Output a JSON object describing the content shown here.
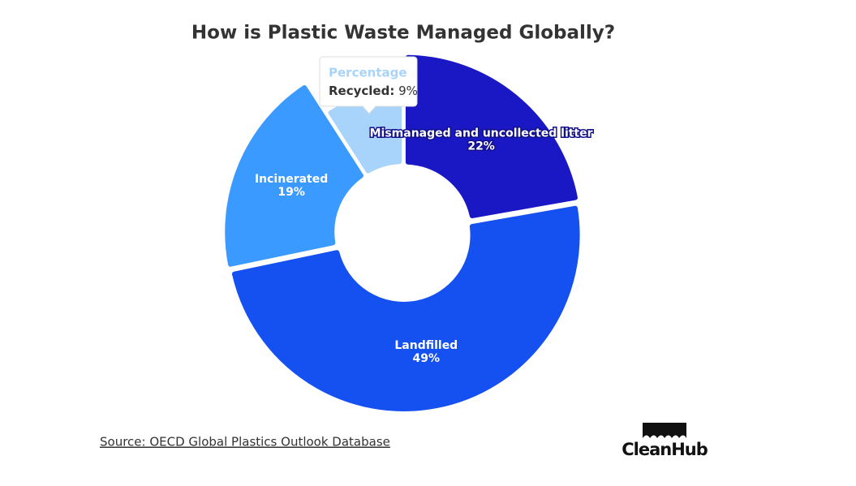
{
  "chart_data": {
    "type": "donut",
    "title": "How is Plastic Waste Managed Globally?",
    "categories": [
      "Mismanaged and uncollected litter",
      "Landfilled",
      "Incinerated",
      "Recycled"
    ],
    "values": [
      22,
      49,
      19,
      9
    ],
    "value_labels": [
      "22%",
      "49%",
      "19%",
      "9%"
    ],
    "colors": [
      "#1a17c4",
      "#1551f0",
      "#3b9aff",
      "#a8d4fb"
    ],
    "tooltip": {
      "title": "Percentage",
      "label": "Recycled:"
    },
    "source": "Source: OECD Global Plastics Outlook Database",
    "logo": "CleanHub"
  }
}
